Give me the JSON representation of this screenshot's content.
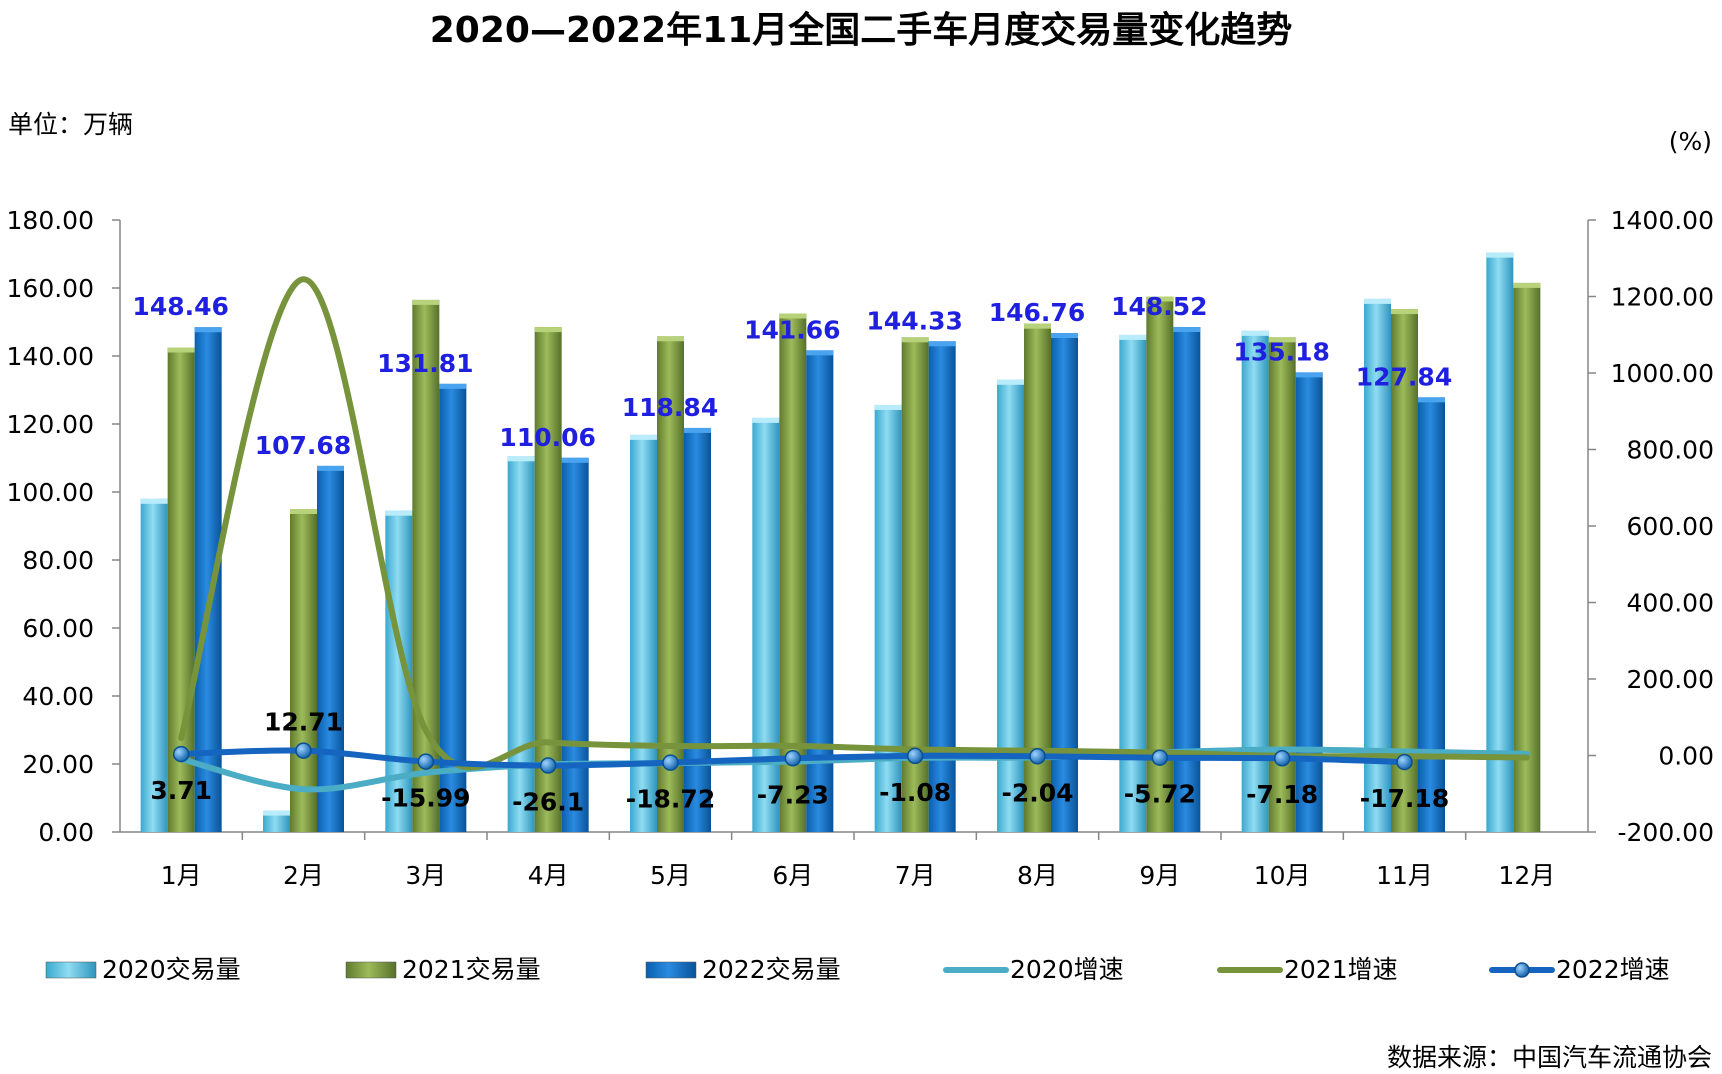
{
  "chart_data": {
    "type": "bar",
    "title": "2020—2022年11月全国二手车月度交易量变化趋势",
    "y_unit_left": "单位：万辆",
    "y_unit_right": "(%)",
    "source": "数据来源：中国汽车流通协会",
    "categories": [
      "1月",
      "2月",
      "3月",
      "4月",
      "5月",
      "6月",
      "7月",
      "8月",
      "9月",
      "10月",
      "11月",
      "12月"
    ],
    "ylim_left": [
      0,
      180
    ],
    "ylim_right": [
      -200,
      1400
    ],
    "yticks_left": [
      "0.00",
      "20.00",
      "40.00",
      "60.00",
      "80.00",
      "100.00",
      "120.00",
      "140.00",
      "160.00",
      "180.00"
    ],
    "yticks_right": [
      "-200.00",
      "0.00",
      "200.00",
      "400.00",
      "600.00",
      "800.00",
      "1000.00",
      "1200.00",
      "1400.00"
    ],
    "series": [
      {
        "name": "2020交易量",
        "kind": "bar",
        "axis": "left",
        "color": "#4fc3e0",
        "values": [
          98.0,
          6.3,
          94.5,
          110.5,
          116.8,
          121.8,
          125.6,
          133.0,
          146.2,
          147.4,
          156.8,
          170.4
        ]
      },
      {
        "name": "2021交易量",
        "kind": "bar",
        "axis": "left",
        "color": "#77933c",
        "values": [
          142.5,
          95.0,
          156.5,
          148.5,
          145.8,
          152.5,
          145.5,
          149.5,
          157.5,
          145.5,
          153.8,
          161.5
        ]
      },
      {
        "name": "2022交易量",
        "kind": "bar",
        "axis": "left",
        "color": "#0b6fc7",
        "values": [
          148.46,
          107.68,
          131.81,
          110.06,
          118.84,
          141.66,
          144.33,
          146.76,
          148.52,
          135.18,
          127.84,
          null
        ],
        "labels": [
          "148.46",
          "107.68",
          "131.81",
          "110.06",
          "118.84",
          "141.66",
          "144.33",
          "146.76",
          "148.52",
          "135.18",
          "127.84",
          ""
        ]
      },
      {
        "name": "2020增速",
        "kind": "line",
        "axis": "right",
        "color": "#4bacc6",
        "values": [
          -9.1,
          -88.1,
          -45.2,
          -23.5,
          -20.0,
          -16.0,
          -6.0,
          -5.0,
          8.0,
          15.5,
          10.5,
          4.0
        ]
      },
      {
        "name": "2021增速",
        "kind": "line",
        "axis": "right",
        "color": "#77933c",
        "values": [
          45.4,
          1245.0,
          65.6,
          34.4,
          24.8,
          25.2,
          15.8,
          12.4,
          7.7,
          -1.3,
          -1.9,
          -5.2
        ]
      },
      {
        "name": "2022增速",
        "kind": "line",
        "axis": "right",
        "color": "#1565c0",
        "values": [
          3.71,
          12.71,
          -15.99,
          -26.1,
          -18.72,
          -7.23,
          -1.08,
          -2.04,
          -5.72,
          -7.18,
          -17.18,
          null
        ],
        "labels": [
          "3.71",
          "12.71",
          "-15.99",
          "-26.1",
          "-18.72",
          "-7.23",
          "-1.08",
          "-2.04",
          "-5.72",
          "-7.18",
          "-17.18",
          ""
        ]
      }
    ],
    "legend_position": "bottom"
  }
}
